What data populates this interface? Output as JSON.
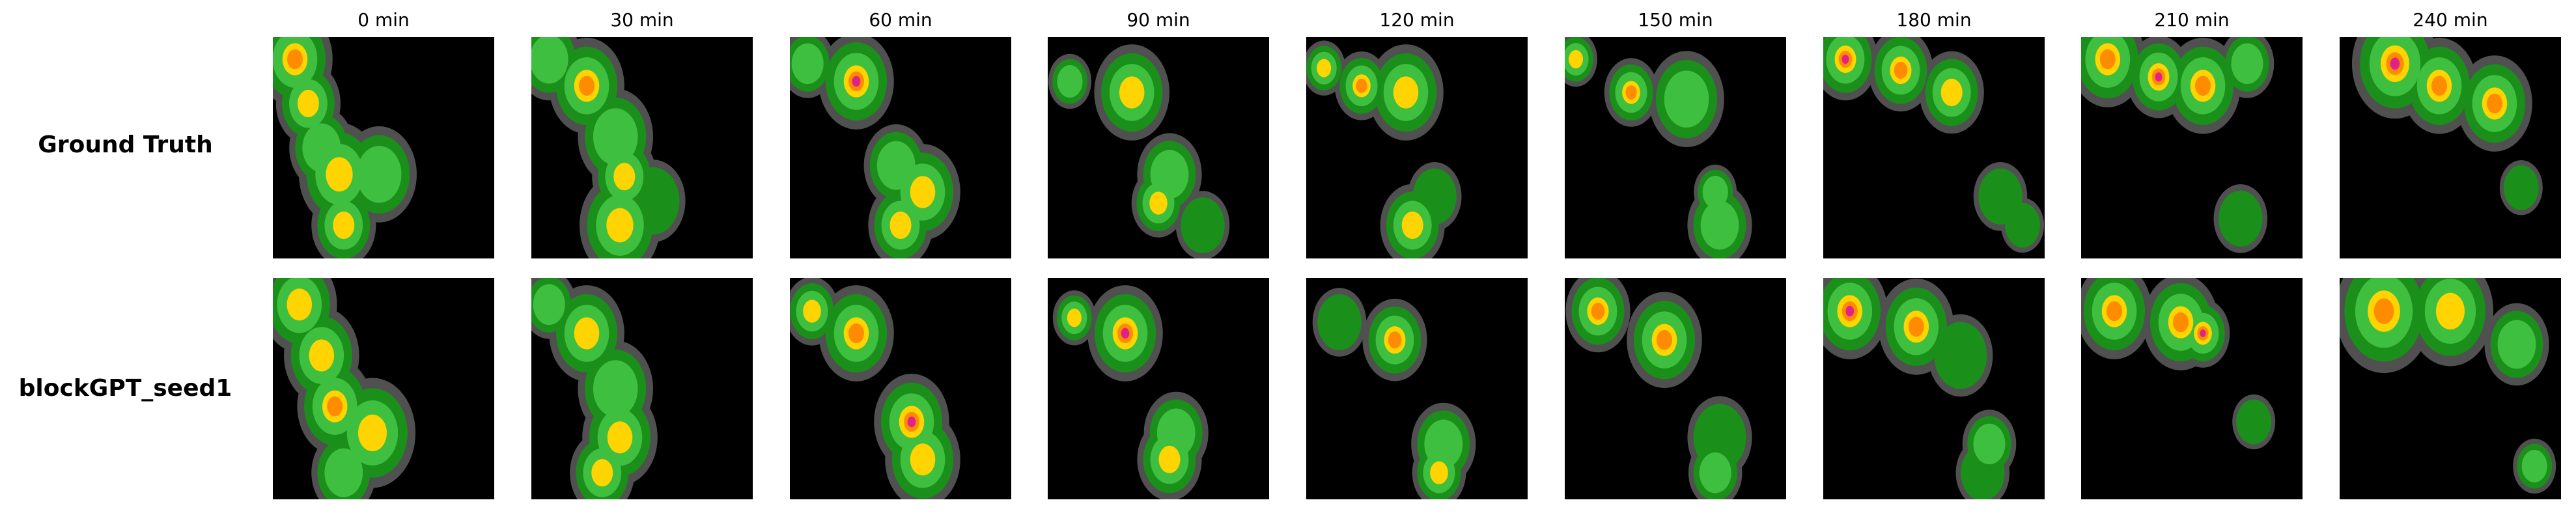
{
  "figure": {
    "column_titles": [
      "0 min",
      "30 min",
      "60 min",
      "90 min",
      "120 min",
      "150 min",
      "180 min",
      "210 min",
      "240 min"
    ],
    "row_labels": [
      "Ground Truth",
      "blockGPT_seed1"
    ]
  },
  "palette": {
    "background": "#000000",
    "trace": "#505050",
    "low": "#1a8f1a",
    "mid": "#3fbf3f",
    "high": "#ffd400",
    "very_high": "#ff8c00",
    "extreme": "#e0218a"
  },
  "panels": [
    [
      {
        "cells": [
          {
            "u": 0.1,
            "v": 0.1,
            "s": 0.14,
            "l": 4
          },
          {
            "u": 0.16,
            "v": 0.3,
            "s": 0.12,
            "l": 3
          },
          {
            "u": 0.22,
            "v": 0.5,
            "s": 0.12,
            "l": 2
          },
          {
            "u": 0.3,
            "v": 0.62,
            "s": 0.15,
            "l": 3
          },
          {
            "u": 0.48,
            "v": 0.62,
            "s": 0.14,
            "l": 2
          },
          {
            "u": 0.32,
            "v": 0.85,
            "s": 0.12,
            "l": 3
          }
        ]
      },
      {
        "cells": [
          {
            "u": 0.08,
            "v": 0.1,
            "s": 0.12,
            "l": 2
          },
          {
            "u": 0.25,
            "v": 0.22,
            "s": 0.14,
            "l": 4
          },
          {
            "u": 0.38,
            "v": 0.45,
            "s": 0.14,
            "l": 2
          },
          {
            "u": 0.42,
            "v": 0.63,
            "s": 0.12,
            "l": 3
          },
          {
            "u": 0.4,
            "v": 0.85,
            "s": 0.15,
            "l": 3
          },
          {
            "u": 0.55,
            "v": 0.74,
            "s": 0.12,
            "l": 1
          }
        ]
      },
      {
        "cells": [
          {
            "u": 0.08,
            "v": 0.12,
            "s": 0.1,
            "l": 2
          },
          {
            "u": 0.3,
            "v": 0.2,
            "s": 0.14,
            "l": 5
          },
          {
            "u": 0.48,
            "v": 0.58,
            "s": 0.12,
            "l": 2
          },
          {
            "u": 0.6,
            "v": 0.7,
            "s": 0.14,
            "l": 3
          },
          {
            "u": 0.5,
            "v": 0.85,
            "s": 0.12,
            "l": 3
          }
        ]
      },
      {
        "cells": [
          {
            "u": 0.1,
            "v": 0.2,
            "s": 0.08,
            "l": 2
          },
          {
            "u": 0.38,
            "v": 0.25,
            "s": 0.14,
            "l": 3
          },
          {
            "u": 0.55,
            "v": 0.62,
            "s": 0.12,
            "l": 2
          },
          {
            "u": 0.5,
            "v": 0.75,
            "s": 0.1,
            "l": 3
          },
          {
            "u": 0.7,
            "v": 0.85,
            "s": 0.1,
            "l": 1
          }
        ]
      },
      {
        "cells": [
          {
            "u": 0.08,
            "v": 0.14,
            "s": 0.08,
            "l": 3
          },
          {
            "u": 0.25,
            "v": 0.22,
            "s": 0.1,
            "l": 4
          },
          {
            "u": 0.45,
            "v": 0.25,
            "s": 0.14,
            "l": 3
          },
          {
            "u": 0.58,
            "v": 0.72,
            "s": 0.1,
            "l": 1
          },
          {
            "u": 0.48,
            "v": 0.85,
            "s": 0.12,
            "l": 3
          }
        ]
      },
      {
        "cells": [
          {
            "u": 0.05,
            "v": 0.1,
            "s": 0.08,
            "l": 3
          },
          {
            "u": 0.3,
            "v": 0.25,
            "s": 0.1,
            "l": 4
          },
          {
            "u": 0.55,
            "v": 0.28,
            "s": 0.14,
            "l": 2
          },
          {
            "u": 0.68,
            "v": 0.7,
            "s": 0.08,
            "l": 2
          },
          {
            "u": 0.7,
            "v": 0.85,
            "s": 0.12,
            "l": 2
          }
        ]
      },
      {
        "cells": [
          {
            "u": 0.1,
            "v": 0.1,
            "s": 0.12,
            "l": 5
          },
          {
            "u": 0.35,
            "v": 0.15,
            "s": 0.12,
            "l": 4
          },
          {
            "u": 0.58,
            "v": 0.25,
            "s": 0.12,
            "l": 3
          },
          {
            "u": 0.8,
            "v": 0.72,
            "s": 0.1,
            "l": 1
          },
          {
            "u": 0.9,
            "v": 0.85,
            "s": 0.08,
            "l": 1
          }
        ]
      },
      {
        "cells": [
          {
            "u": 0.12,
            "v": 0.1,
            "s": 0.14,
            "l": 4
          },
          {
            "u": 0.35,
            "v": 0.18,
            "s": 0.12,
            "l": 5
          },
          {
            "u": 0.55,
            "v": 0.22,
            "s": 0.14,
            "l": 4
          },
          {
            "u": 0.75,
            "v": 0.12,
            "s": 0.1,
            "l": 2
          },
          {
            "u": 0.72,
            "v": 0.82,
            "s": 0.1,
            "l": 1
          }
        ]
      },
      {
        "cells": [
          {
            "u": 0.25,
            "v": 0.12,
            "s": 0.16,
            "l": 5
          },
          {
            "u": 0.45,
            "v": 0.22,
            "s": 0.14,
            "l": 4
          },
          {
            "u": 0.7,
            "v": 0.3,
            "s": 0.14,
            "l": 4
          },
          {
            "u": 0.82,
            "v": 0.68,
            "s": 0.08,
            "l": 1
          }
        ]
      }
    ],
    [
      {
        "cells": [
          {
            "u": 0.12,
            "v": 0.12,
            "s": 0.14,
            "l": 3
          },
          {
            "u": 0.22,
            "v": 0.35,
            "s": 0.14,
            "l": 3
          },
          {
            "u": 0.28,
            "v": 0.58,
            "s": 0.14,
            "l": 4
          },
          {
            "u": 0.45,
            "v": 0.7,
            "s": 0.16,
            "l": 3
          },
          {
            "u": 0.32,
            "v": 0.88,
            "s": 0.12,
            "l": 2
          }
        ]
      },
      {
        "cells": [
          {
            "u": 0.08,
            "v": 0.12,
            "s": 0.1,
            "l": 2
          },
          {
            "u": 0.25,
            "v": 0.25,
            "s": 0.14,
            "l": 3
          },
          {
            "u": 0.38,
            "v": 0.5,
            "s": 0.14,
            "l": 2
          },
          {
            "u": 0.4,
            "v": 0.72,
            "s": 0.14,
            "l": 3
          },
          {
            "u": 0.32,
            "v": 0.88,
            "s": 0.12,
            "l": 3
          }
        ]
      },
      {
        "cells": [
          {
            "u": 0.1,
            "v": 0.15,
            "s": 0.1,
            "l": 3
          },
          {
            "u": 0.3,
            "v": 0.25,
            "s": 0.14,
            "l": 4
          },
          {
            "u": 0.55,
            "v": 0.65,
            "s": 0.14,
            "l": 5
          },
          {
            "u": 0.6,
            "v": 0.82,
            "s": 0.14,
            "l": 3
          }
        ]
      },
      {
        "cells": [
          {
            "u": 0.12,
            "v": 0.18,
            "s": 0.08,
            "l": 3
          },
          {
            "u": 0.35,
            "v": 0.25,
            "s": 0.14,
            "l": 5
          },
          {
            "u": 0.58,
            "v": 0.7,
            "s": 0.12,
            "l": 2
          },
          {
            "u": 0.55,
            "v": 0.82,
            "s": 0.12,
            "l": 3
          }
        ]
      },
      {
        "cells": [
          {
            "u": 0.15,
            "v": 0.2,
            "s": 0.1,
            "l": 1
          },
          {
            "u": 0.4,
            "v": 0.28,
            "s": 0.12,
            "l": 4
          },
          {
            "u": 0.62,
            "v": 0.75,
            "s": 0.12,
            "l": 2
          },
          {
            "u": 0.6,
            "v": 0.88,
            "s": 0.1,
            "l": 3
          }
        ]
      },
      {
        "cells": [
          {
            "u": 0.15,
            "v": 0.15,
            "s": 0.12,
            "l": 4
          },
          {
            "u": 0.45,
            "v": 0.28,
            "s": 0.14,
            "l": 4
          },
          {
            "u": 0.7,
            "v": 0.72,
            "s": 0.12,
            "l": 1
          },
          {
            "u": 0.68,
            "v": 0.88,
            "s": 0.1,
            "l": 2
          }
        ]
      },
      {
        "cells": [
          {
            "u": 0.12,
            "v": 0.15,
            "s": 0.14,
            "l": 5
          },
          {
            "u": 0.42,
            "v": 0.22,
            "s": 0.14,
            "l": 4
          },
          {
            "u": 0.62,
            "v": 0.35,
            "s": 0.12,
            "l": 1
          },
          {
            "u": 0.75,
            "v": 0.75,
            "s": 0.1,
            "l": 2
          },
          {
            "u": 0.72,
            "v": 0.88,
            "s": 0.1,
            "l": 1
          }
        ]
      },
      {
        "cells": [
          {
            "u": 0.15,
            "v": 0.15,
            "s": 0.14,
            "l": 4
          },
          {
            "u": 0.45,
            "v": 0.2,
            "s": 0.14,
            "l": 4
          },
          {
            "u": 0.55,
            "v": 0.25,
            "s": 0.1,
            "l": 5
          },
          {
            "u": 0.78,
            "v": 0.65,
            "s": 0.08,
            "l": 1
          }
        ]
      },
      {
        "cells": [
          {
            "u": 0.2,
            "v": 0.15,
            "s": 0.18,
            "l": 4
          },
          {
            "u": 0.5,
            "v": 0.15,
            "s": 0.16,
            "l": 3
          },
          {
            "u": 0.8,
            "v": 0.3,
            "s": 0.12,
            "l": 2
          },
          {
            "u": 0.88,
            "v": 0.85,
            "s": 0.08,
            "l": 2
          }
        ]
      }
    ]
  ]
}
